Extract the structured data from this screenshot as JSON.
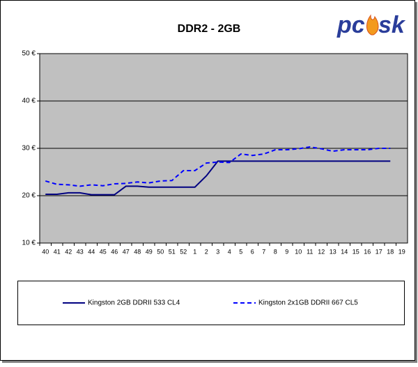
{
  "chart_data": {
    "type": "line",
    "title": "DDR2 - 2GB",
    "logo": [
      "pc",
      "sk"
    ],
    "categories": [
      "40",
      "41",
      "42",
      "43",
      "44",
      "45",
      "46",
      "47",
      "48",
      "49",
      "50",
      "51",
      "52",
      "1",
      "2",
      "3",
      "4",
      "5",
      "6",
      "7",
      "8",
      "9",
      "10",
      "11",
      "12",
      "13",
      "14",
      "15",
      "16",
      "17",
      "18",
      "19"
    ],
    "series": [
      {
        "name": "Kingston 2GB DDRII 533 CL4",
        "color": "#000080",
        "style": "solid",
        "values": [
          20.3,
          20.3,
          20.6,
          20.6,
          20.2,
          20.2,
          20.2,
          22.0,
          22.0,
          21.8,
          21.8,
          21.8,
          21.8,
          21.8,
          24.2,
          27.3,
          27.3,
          27.3,
          27.3,
          27.3,
          27.3,
          27.3,
          27.3,
          27.3,
          27.3,
          27.3,
          27.3,
          27.3,
          27.3,
          27.3,
          27.3,
          null
        ]
      },
      {
        "name": "Kingston 2x1GB DDRII 667 CL5",
        "color": "#0000ff",
        "style": "dashed",
        "values": [
          23.1,
          22.4,
          22.3,
          22.0,
          22.3,
          22.1,
          22.5,
          22.6,
          22.9,
          22.7,
          23.1,
          23.2,
          25.3,
          25.3,
          26.9,
          27.1,
          27.0,
          28.8,
          28.5,
          28.8,
          29.7,
          29.7,
          29.9,
          30.3,
          29.9,
          29.4,
          29.7,
          29.7,
          29.7,
          30.0,
          30.0,
          null
        ]
      }
    ],
    "ylim": [
      10,
      50
    ],
    "yticks": [
      {
        "value": 10,
        "label": "10 €"
      },
      {
        "value": 20,
        "label": "20 €"
      },
      {
        "value": 30,
        "label": "30 €"
      },
      {
        "value": 40,
        "label": "40 €"
      },
      {
        "value": 50,
        "label": "50 €"
      }
    ],
    "grid": true,
    "legend": "bottom"
  }
}
